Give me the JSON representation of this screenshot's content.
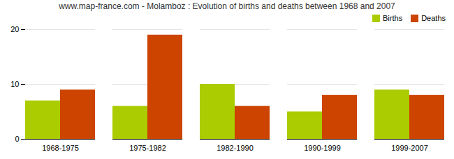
{
  "chart_data": {
    "type": "bar",
    "title": "www.map-france.com - Molamboz : Evolution of births and deaths between 1968 and 2007",
    "categories": [
      "1968-1975",
      "1975-1982",
      "1982-1990",
      "1990-1999",
      "1999-2007"
    ],
    "series": [
      {
        "name": "Births",
        "color": "#aacc00",
        "values": [
          7,
          6,
          10,
          5,
          9
        ]
      },
      {
        "name": "Deaths",
        "color": "#cc4400",
        "values": [
          9,
          19,
          6,
          8,
          8
        ]
      }
    ],
    "ylim": [
      0,
      20
    ],
    "yticks": [
      0,
      10,
      20
    ],
    "grid": true,
    "legend": "upper right"
  }
}
